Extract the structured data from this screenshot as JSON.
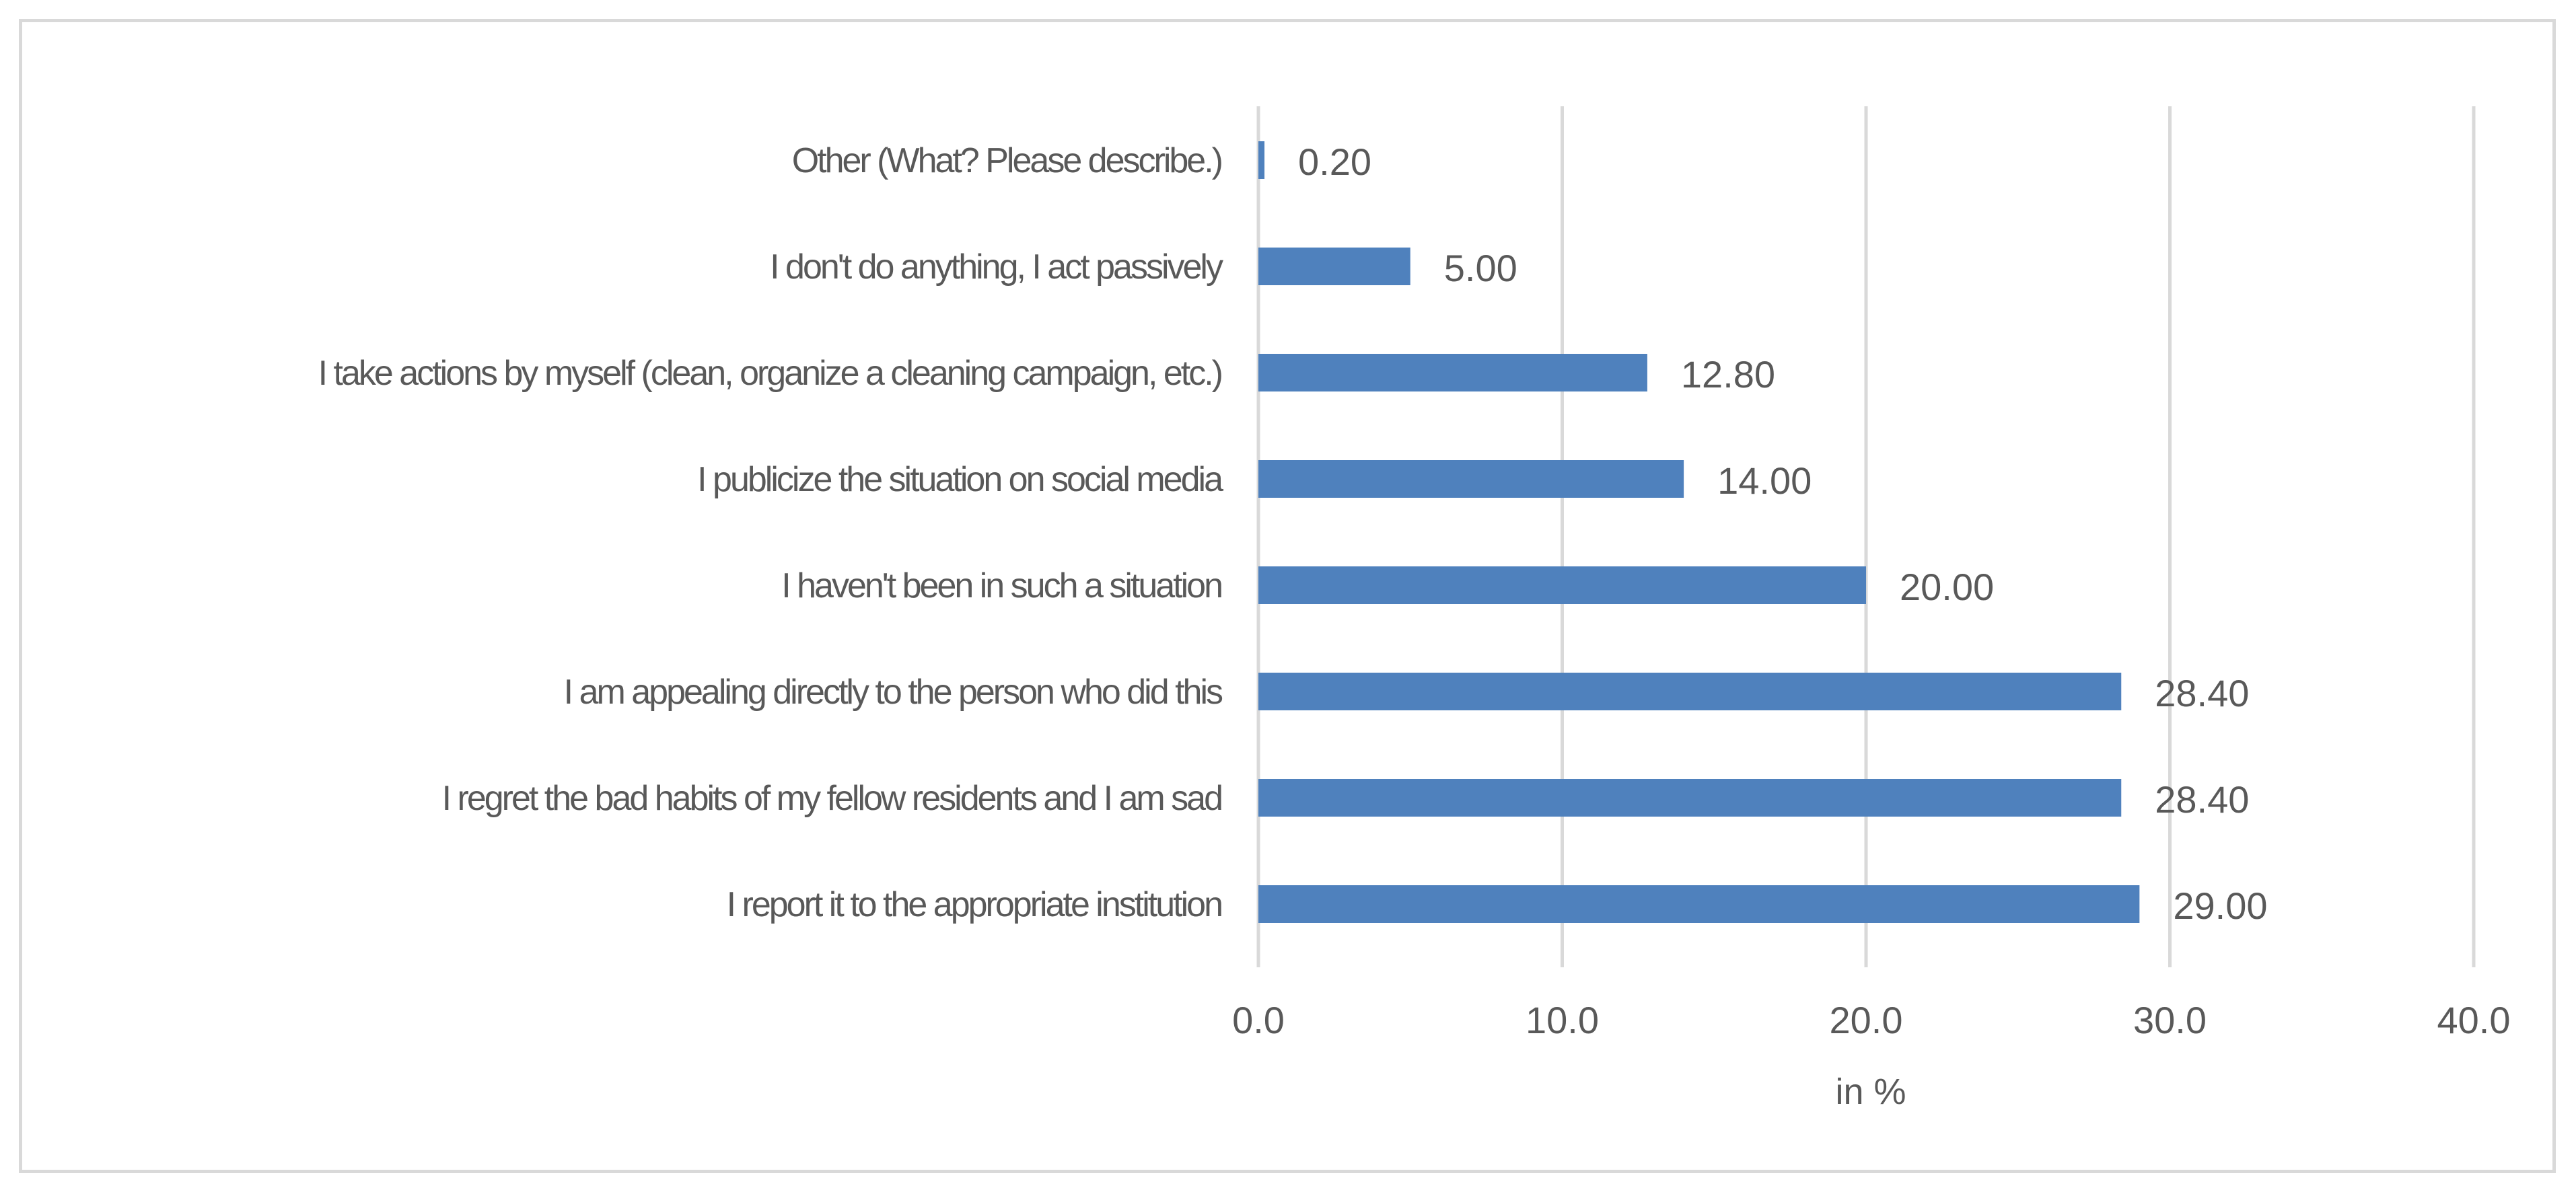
{
  "chart_data": {
    "type": "bar",
    "orientation": "horizontal",
    "categories": [
      "Other (What? Please describe.)",
      "I don't do anything, I act passively",
      "I take actions by myself (clean, organize a cleaning campaign, etc.)",
      "I publicize the situation on social media",
      "I haven't been in such a situation",
      "I am appealing directly to the person who did this",
      "I regret the bad habits of my fellow residents and I am sad",
      "I report it to the appropriate institution"
    ],
    "values": [
      0.2,
      5.0,
      12.8,
      14.0,
      20.0,
      28.4,
      28.4,
      29.0
    ],
    "value_labels": [
      "0.20",
      "5.00",
      "12.80",
      "14.00",
      "20.00",
      "28.40",
      "28.40",
      "29.00"
    ],
    "xlim": [
      0,
      40
    ],
    "xticks": [
      0,
      10,
      20,
      30,
      40
    ],
    "xtick_labels": [
      "0.0",
      "10.0",
      "20.0",
      "30.0",
      "40.0"
    ],
    "xlabel": "in %",
    "ylabel": "",
    "title": "",
    "grid": "vertical",
    "legend": "none",
    "colors": {
      "bar": "#4f81bd",
      "grid": "#d9d9d9",
      "text": "#595959",
      "frame": "#d9d9d9"
    }
  }
}
